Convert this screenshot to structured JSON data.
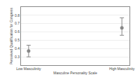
{
  "chart_data": {
    "type": "scatter",
    "xlabel": "Masculine Personality Scale",
    "ylabel": "Perceived Qualification for Congress",
    "categories": [
      "Low Masculinity",
      "High Masculinity"
    ],
    "values": [
      0.37,
      0.65
    ],
    "yerr_lower": [
      0.07,
      0.09
    ],
    "yerr_upper": [
      0.07,
      0.12
    ],
    "color": "#888888",
    "marker": "circle",
    "ylim": [
      0.2,
      0.9
    ],
    "yticks": [
      0.3,
      0.4,
      0.5,
      0.6,
      0.7,
      0.8
    ],
    "grid": true
  }
}
